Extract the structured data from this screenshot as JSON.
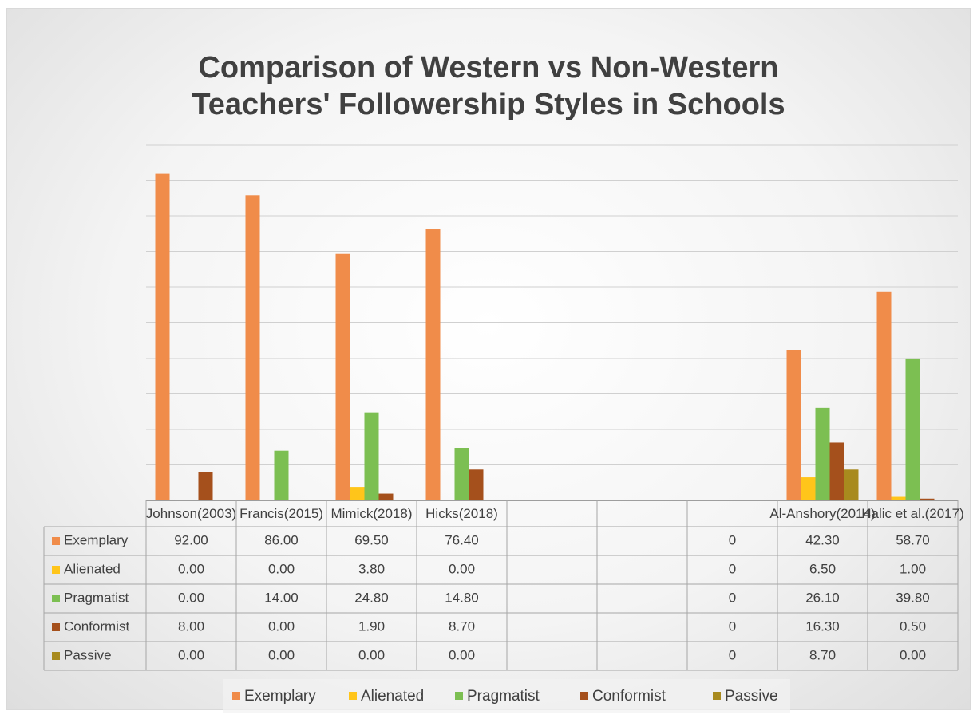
{
  "chart_data": {
    "type": "bar",
    "title": "Comparison of Western vs Non-Western Teachers' Followership Styles in Schools",
    "categories": [
      "Johnson(2003)",
      "Francis(2015)",
      "Mimick(2018)",
      "Hicks(2018)",
      null,
      null,
      null,
      "Al-Anshory(2014)",
      "Halic et al.(2017)"
    ],
    "series": [
      {
        "name": "Exemplary",
        "color": "#f08c4a",
        "values": [
          92,
          86,
          69.5,
          76.4,
          null,
          null,
          0,
          42.3,
          58.7
        ],
        "value_labels": [
          "92.00",
          "86.00",
          "69.50",
          "76.40",
          null,
          null,
          "0",
          "42.30",
          "58.70"
        ]
      },
      {
        "name": "Alienated",
        "color": "#ffc51a",
        "values": [
          0,
          0,
          3.8,
          0,
          null,
          null,
          0,
          6.5,
          1
        ],
        "value_labels": [
          "0.00",
          "0.00",
          "3.80",
          "0.00",
          null,
          null,
          "0",
          "6.50",
          "1.00"
        ]
      },
      {
        "name": "Pragmatist",
        "color": "#7cbf52",
        "values": [
          0,
          14,
          24.8,
          14.8,
          null,
          null,
          0,
          26.1,
          39.8
        ],
        "value_labels": [
          "0.00",
          "14.00",
          "24.80",
          "14.80",
          null,
          null,
          "0",
          "26.10",
          "39.80"
        ]
      },
      {
        "name": "Conformist",
        "color": "#a5501c",
        "values": [
          8,
          0,
          1.9,
          8.7,
          null,
          null,
          0,
          16.3,
          0.5
        ],
        "value_labels": [
          "8.00",
          "0.00",
          "1.90",
          "8.70",
          null,
          null,
          "0",
          "16.30",
          "0.50"
        ]
      },
      {
        "name": "Passive",
        "color": "#a88a1e",
        "values": [
          0,
          0,
          0,
          0,
          null,
          null,
          0,
          8.7,
          0
        ],
        "value_labels": [
          "0.00",
          "0.00",
          "0.00",
          "0.00",
          null,
          null,
          "0",
          "8.70",
          "0.00"
        ]
      }
    ],
    "ylim": [
      0,
      100
    ],
    "yticks": [
      0,
      10,
      20,
      30,
      40,
      50,
      60,
      70,
      80,
      90,
      100
    ],
    "grid": true,
    "legend": "bottom"
  }
}
